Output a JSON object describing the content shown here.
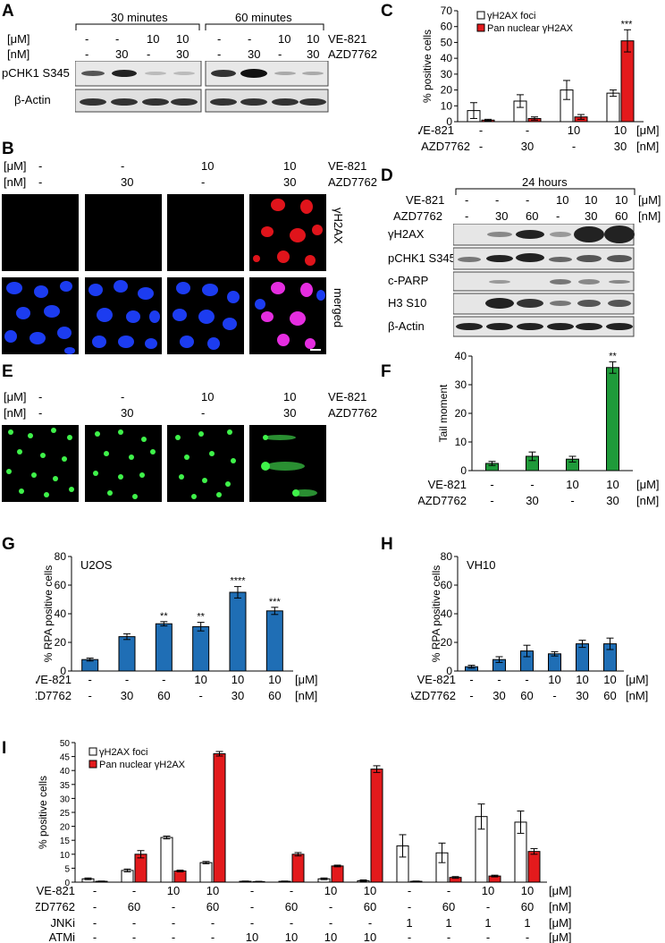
{
  "panels": {
    "A": "A",
    "B": "B",
    "C": "C",
    "D": "D",
    "E": "E",
    "F": "F",
    "G": "G",
    "H": "H",
    "I": "I"
  },
  "units": {
    "uM": "[μM]",
    "nM": "[nM]",
    "uM_bracket": "[μM]"
  },
  "drugs": {
    "ve821": "VE-821",
    "azd": "AZD7762",
    "jnki": "JNKi",
    "atmi": "ATMi"
  },
  "panelA": {
    "time1": "30 minutes",
    "time2": "60 minutes",
    "ve_row": [
      "-",
      "-",
      "10",
      "10",
      "-",
      "-",
      "10",
      "10"
    ],
    "azd_row": [
      "-",
      "30",
      "-",
      "30",
      "-",
      "30",
      "-",
      "30"
    ],
    "blot1": "pCHK1 S345",
    "blot2": "β-Actin"
  },
  "panelB": {
    "ve_row": [
      "-",
      "-",
      "10",
      "10"
    ],
    "azd_row": [
      "-",
      "30",
      "-",
      "30"
    ],
    "row1": "γH2AX",
    "row2": "merged"
  },
  "panelD": {
    "time": "24 hours",
    "ve_row": [
      "-",
      "-",
      "-",
      "10",
      "10",
      "10"
    ],
    "azd_row": [
      "-",
      "30",
      "60",
      "-",
      "30",
      "60"
    ],
    "blots": [
      "γH2AX",
      "pCHK1 S345",
      "c-PARP",
      "H3 S10",
      "β-Actin"
    ]
  },
  "panelE": {
    "ve_row": [
      "-",
      "-",
      "10",
      "10"
    ],
    "azd_row": [
      "-",
      "30",
      "-",
      "30"
    ]
  },
  "chart_data": [
    {
      "id": "C",
      "type": "bar",
      "ylabel": "% positive cells",
      "ylim": [
        0,
        70
      ],
      "yticks": [
        0,
        10,
        20,
        30,
        40,
        50,
        60,
        70
      ],
      "ve_row": [
        "-",
        "-",
        "10",
        "10"
      ],
      "azd_row": [
        "-",
        "30",
        "-",
        "30"
      ],
      "series": [
        {
          "name": "γH2AX foci",
          "color": "#ffffff",
          "values": [
            7,
            13,
            20,
            18
          ],
          "errors": [
            5,
            4,
            6,
            2
          ]
        },
        {
          "name": "Pan nuclear γH2AX",
          "color": "#e31a1c",
          "values": [
            1,
            2,
            3,
            51
          ],
          "errors": [
            0.5,
            1,
            1.5,
            7
          ]
        }
      ],
      "annotations": [
        "",
        "",
        "",
        "***"
      ]
    },
    {
      "id": "F",
      "type": "bar",
      "ylabel": "Tail moment",
      "ylim": [
        0,
        40
      ],
      "yticks": [
        0,
        10,
        20,
        30,
        40
      ],
      "ve_row": [
        "-",
        "-",
        "10",
        "10"
      ],
      "azd_row": [
        "-",
        "30",
        "-",
        "30"
      ],
      "series": [
        {
          "color": "#1f9a3a",
          "values": [
            2.5,
            5,
            4,
            36
          ],
          "errors": [
            0.7,
            1.5,
            1,
            2
          ]
        }
      ],
      "annotations": [
        "",
        "",
        "",
        "**"
      ]
    },
    {
      "id": "G",
      "type": "bar",
      "title": "U2OS",
      "ylabel": "% RPA positive cells",
      "ylim": [
        0,
        80
      ],
      "yticks": [
        0,
        20,
        40,
        60,
        80
      ],
      "ve_row": [
        "-",
        "-",
        "-",
        "10",
        "10",
        "10"
      ],
      "azd_row": [
        "-",
        "30",
        "60",
        "-",
        "30",
        "60"
      ],
      "series": [
        {
          "color": "#1f6eb5",
          "values": [
            8,
            24,
            33,
            31,
            55,
            42
          ],
          "errors": [
            1,
            2,
            1.5,
            3,
            4,
            2.5
          ]
        }
      ],
      "annotations": [
        "",
        "",
        "**",
        "**",
        "****",
        "***"
      ]
    },
    {
      "id": "H",
      "type": "bar",
      "title": "VH10",
      "ylabel": "% RPA positive cells",
      "ylim": [
        0,
        80
      ],
      "yticks": [
        0,
        20,
        40,
        60,
        80
      ],
      "ve_row": [
        "-",
        "-",
        "-",
        "10",
        "10",
        "10"
      ],
      "azd_row": [
        "-",
        "30",
        "60",
        "-",
        "30",
        "60"
      ],
      "series": [
        {
          "color": "#1f6eb5",
          "values": [
            3,
            8,
            14,
            12,
            19,
            19
          ],
          "errors": [
            1,
            2,
            4,
            1.5,
            2.5,
            4
          ]
        }
      ],
      "annotations": [
        "",
        "",
        "",
        "",
        "",
        ""
      ]
    },
    {
      "id": "I",
      "type": "bar",
      "ylabel": "% positive cells",
      "ylim": [
        0,
        50
      ],
      "yticks": [
        0,
        5,
        10,
        15,
        20,
        25,
        30,
        35,
        40,
        45,
        50
      ],
      "ve_row": [
        "-",
        "-",
        "10",
        "10",
        "-",
        "-",
        "10",
        "10",
        "-",
        "-",
        "10",
        "10"
      ],
      "azd_row": [
        "-",
        "60",
        "-",
        "60",
        "-",
        "60",
        "-",
        "60",
        "-",
        "60",
        "-",
        "60"
      ],
      "jnki_row": [
        "-",
        "-",
        "-",
        "-",
        "-",
        "-",
        "-",
        "-",
        "1",
        "1",
        "1",
        "1"
      ],
      "atmi_row": [
        "-",
        "-",
        "-",
        "-",
        "10",
        "10",
        "10",
        "10",
        "-",
        "-",
        "-",
        "-"
      ],
      "series": [
        {
          "name": "γH2AX foci",
          "color": "#ffffff",
          "values": [
            1.2,
            4.2,
            16,
            7,
            0.3,
            0.3,
            1.2,
            0.5,
            13,
            10.5,
            23.5,
            21.5
          ],
          "errors": [
            0.3,
            0.5,
            0.5,
            0.4,
            0.1,
            0.1,
            0.3,
            0.3,
            4,
            3.5,
            4.5,
            4
          ]
        },
        {
          "name": "Pan nuclear γH2AX",
          "color": "#e31a1c",
          "values": [
            0.3,
            10,
            4,
            46,
            0.2,
            10,
            5.8,
            40.5,
            0.3,
            1.7,
            2.2,
            11
          ],
          "errors": [
            0.1,
            1.3,
            0.3,
            0.8,
            0.1,
            0.6,
            0.3,
            1.2,
            0.1,
            0.3,
            0.3,
            1
          ]
        }
      ]
    }
  ]
}
